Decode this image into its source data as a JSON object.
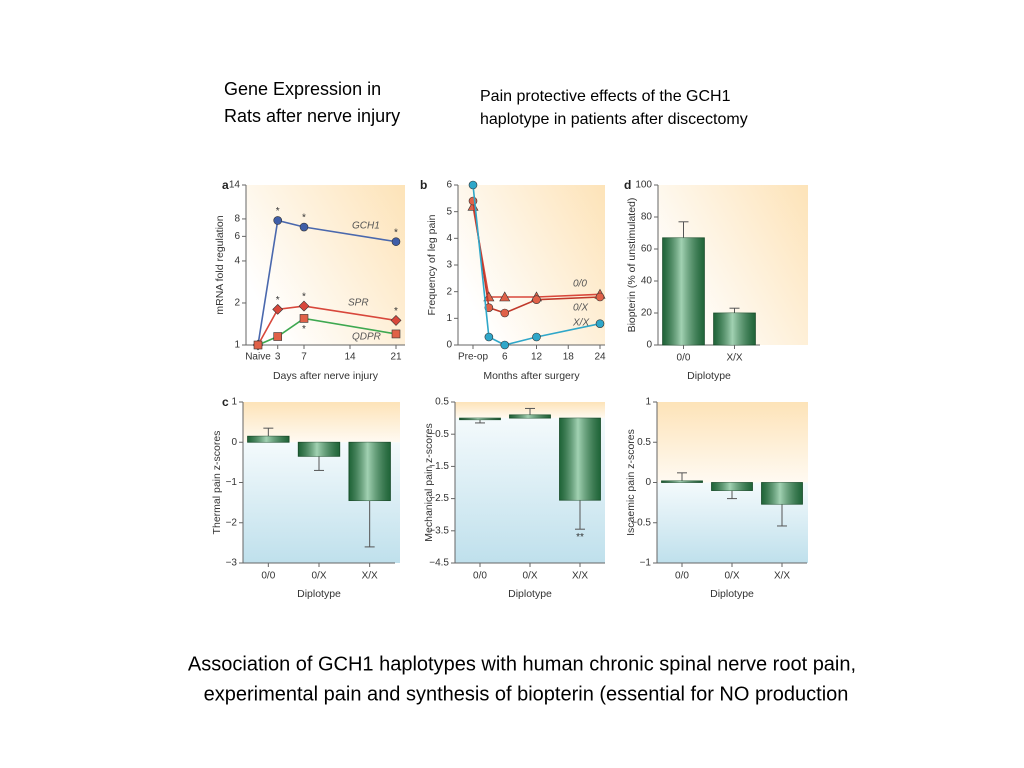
{
  "headings": {
    "left": [
      "Gene Expression in",
      "Rats after nerve injury"
    ],
    "right": [
      "Pain protective effects of the GCH1",
      "haplotype in patients after discectomy"
    ]
  },
  "caption": [
    "Association of GCH1 haplotypes with human chronic spinal nerve root pain,",
    "experimental pain and synthesis of biopterin (essential for NO production"
  ],
  "chart_data": [
    {
      "type": "line",
      "panel_label": "a",
      "ylabel": "mRNA fold regulation",
      "xlabel": "Days after nerve injury",
      "log_scale": true,
      "x": [
        0,
        3,
        7,
        21
      ],
      "xlim": [
        0,
        21
      ],
      "xticks": [
        {
          "value": 0,
          "label": "Naive"
        },
        3,
        7,
        14,
        21
      ],
      "ylim": [
        1,
        14
      ],
      "yticks": [
        1,
        2,
        4,
        6,
        8,
        14
      ],
      "series": [
        {
          "name": "GCH1",
          "color": "#4a68ad",
          "marker": "circle",
          "marker_color": "#3f5ea8",
          "values": [
            1,
            7.8,
            7,
            5.5
          ]
        },
        {
          "name": "SPR",
          "color": "#d8473b",
          "marker": "diamond",
          "marker_color": "#d8473b",
          "values": [
            1,
            1.8,
            1.9,
            1.5
          ]
        },
        {
          "name": "QDPR",
          "color": "#3ea850",
          "marker": "square",
          "marker_color": "#e06148",
          "values": [
            1,
            1.15,
            1.55,
            1.2
          ]
        }
      ],
      "annotations": [
        {
          "text": "*",
          "x": 3,
          "y": 7.8
        },
        {
          "text": "*",
          "x": 7,
          "y": 7
        },
        {
          "text": "*",
          "x": 21,
          "y": 5.5
        },
        {
          "text": "*",
          "x": 3,
          "y": 1.8
        },
        {
          "text": "*",
          "x": 7,
          "y": 1.9
        },
        {
          "text": "*",
          "x": 21,
          "y": 1.5
        },
        {
          "text": "*",
          "x": 7,
          "y": 1.55,
          "placement": "below"
        }
      ]
    },
    {
      "type": "line",
      "panel_label": "b",
      "ylabel": "Frequency of leg pain",
      "xlabel": "Months after surgery",
      "x": [
        0,
        3,
        6,
        12,
        24
      ],
      "xlim": [
        0,
        24
      ],
      "xticks": [
        {
          "value": 0,
          "label": "Pre-op"
        },
        6,
        12,
        18,
        24
      ],
      "ylim": [
        0,
        6
      ],
      "yticks": [
        0,
        1,
        2,
        3,
        4,
        5,
        6
      ],
      "series": [
        {
          "name": "0/0",
          "color": "#d8473b",
          "marker": "triangle",
          "marker_color": "#e06148",
          "values": [
            5.2,
            1.8,
            1.8,
            1.8,
            1.9
          ]
        },
        {
          "name": "0/X",
          "color": "#c0392b",
          "marker": "circle",
          "marker_color": "#e06148",
          "values": [
            5.4,
            1.4,
            1.2,
            1.7,
            1.8
          ]
        },
        {
          "name": "X/X",
          "color": "#2fa7c9",
          "marker": "circle",
          "marker_color": "#2fa7c9",
          "values": [
            6,
            0.3,
            0,
            0.3,
            0.8
          ]
        }
      ]
    },
    {
      "type": "bar",
      "panel_label": "d",
      "ylabel": "Biopterin (% of unstimulated)",
      "xlabel": "Diplotype",
      "categories": [
        "0/0",
        "X/X"
      ],
      "values": [
        67,
        20
      ],
      "errors": [
        10,
        3
      ],
      "color": "#2f9a55",
      "ylim": [
        0,
        100
      ],
      "yticks": [
        0,
        20,
        40,
        60,
        80,
        100
      ]
    },
    {
      "type": "bar",
      "panel_label": "c",
      "ylabel": "Thermal pain z-scores",
      "xlabel": "Diplotype",
      "categories": [
        "0/0",
        "0/X",
        "X/X"
      ],
      "values": [
        0.15,
        -0.35,
        -1.45
      ],
      "errors": [
        0.2,
        0.35,
        1.15
      ],
      "color": "#2f9a55",
      "ylim": [
        -3,
        1
      ],
      "yticks": [
        {
          "value": -3,
          "label": "−3"
        },
        {
          "value": -2,
          "label": "−2"
        },
        {
          "value": -1,
          "label": "−1"
        },
        0,
        1
      ]
    },
    {
      "type": "bar",
      "ylabel": "Mechanical pain z-scores",
      "xlabel": "Diplotype",
      "categories": [
        "0/0",
        "0/X",
        "X/X"
      ],
      "values": [
        -0.05,
        0.1,
        -2.55
      ],
      "errors": [
        0.1,
        0.2,
        0.9
      ],
      "color": "#2f9a55",
      "ylim": [
        -4.5,
        0.5
      ],
      "yticks": [
        {
          "value": -4.5,
          "label": "−4.5"
        },
        {
          "value": -3.5,
          "label": "−3.5"
        },
        {
          "value": -2.5,
          "label": "−2.5"
        },
        {
          "value": -1.5,
          "label": "−1.5"
        },
        {
          "value": -0.5,
          "label": "−0.5"
        },
        0.5
      ],
      "annotations": [
        {
          "text": "**",
          "x": "X/X",
          "y": -3.45,
          "placement": "below"
        }
      ]
    },
    {
      "type": "bar",
      "ylabel": "Iscaemic pain z-scores",
      "xlabel": "Diplotype",
      "categories": [
        "0/0",
        "0/X",
        "X/X"
      ],
      "values": [
        0.02,
        -0.1,
        -0.27
      ],
      "errors": [
        0.1,
        0.1,
        0.27
      ],
      "color": "#2f9a55",
      "ylim": [
        -1,
        1
      ],
      "yticks": [
        {
          "value": -1,
          "label": "−1"
        },
        {
          "value": -0.5,
          "label": "−0.5"
        },
        0,
        0.5,
        1
      ]
    }
  ]
}
